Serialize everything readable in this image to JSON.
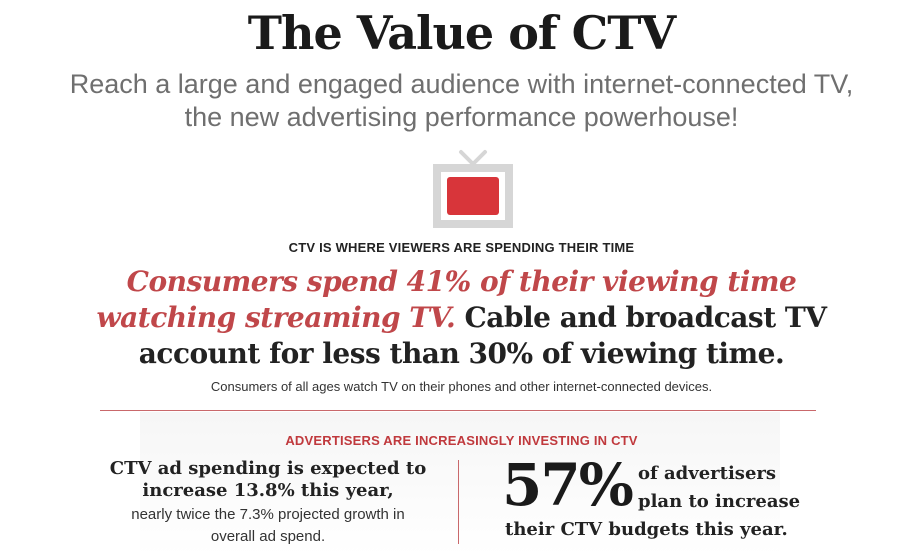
{
  "title": "The Value of CTV",
  "subtitle": "Reach a large and engaged audience with internet-connected TV, the new advertising performance powerhouse!",
  "icon": "tv-icon",
  "colors": {
    "accent_red": "#c0393d",
    "tv_screen": "#d8353a",
    "tv_frame": "#d6d6d6"
  },
  "section1": {
    "heading": "CTV IS WHERE VIEWERS ARE SPENDING THEIR TIME",
    "highlight": "Consumers spend 41% of their viewing time watching streaming TV.",
    "statement": " Cable and broadcast TV account for less than 30% of viewing time.",
    "note": "Consumers of all ages watch TV on their phones and other internet-connected devices."
  },
  "section2": {
    "heading": "ADVERTISERS ARE INCREASINGLY INVESTING IN CTV",
    "left_main": "CTV ad spending is expected to increase 13.8% this year,",
    "left_sub": "nearly twice the 7.3% projected growth in overall ad spend.",
    "big_stat": "57%",
    "right_line1": "of advertisers",
    "right_line2": "plan to increase",
    "right_line3": "their CTV budgets this year."
  }
}
